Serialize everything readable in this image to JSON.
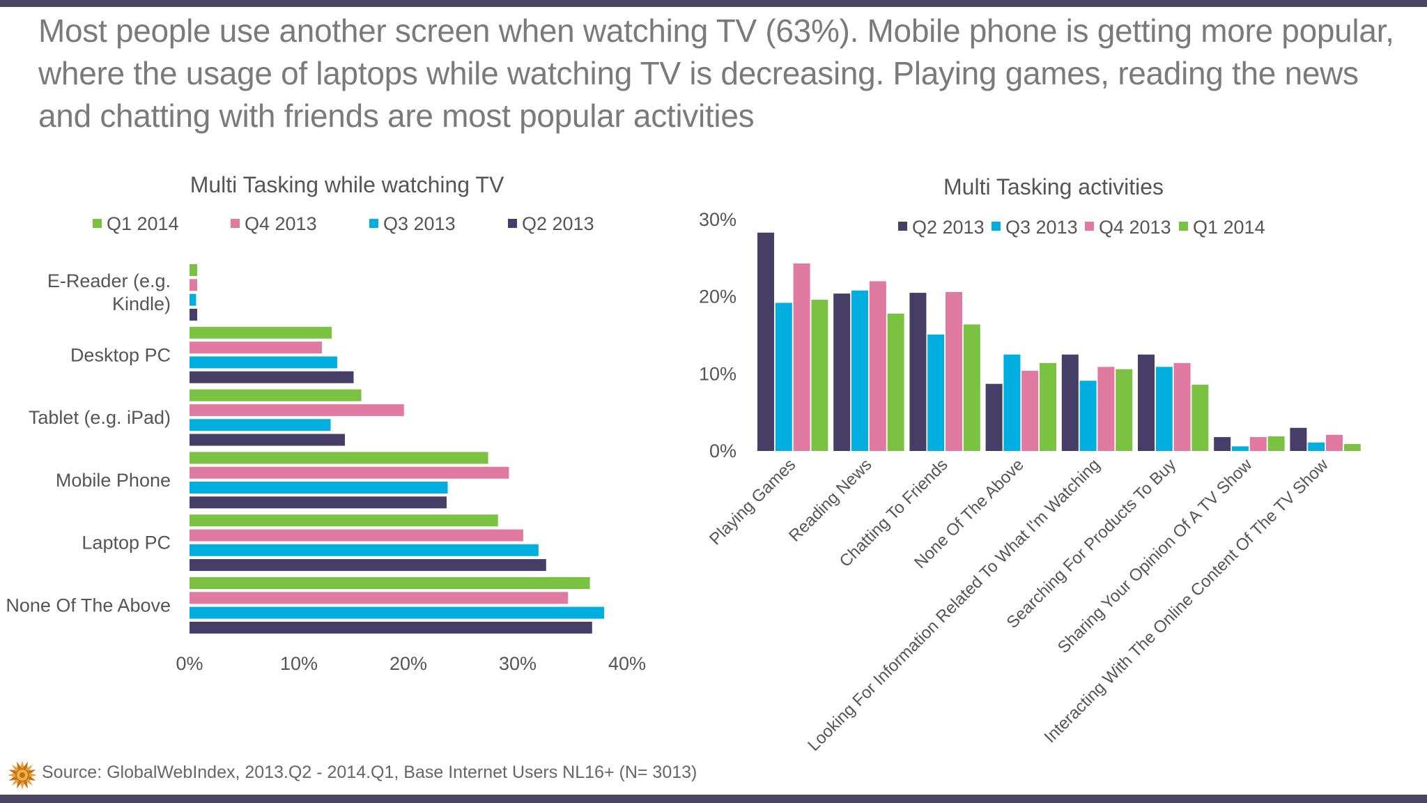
{
  "headline": "Most people use another screen when watching TV (63%). Mobile phone is getting more popular, where the usage of laptops while watching TV is decreasing. Playing games, reading the news and chatting with friends are most popular activities",
  "source": "Source: GlobalWebIndex, 2013.Q2 - 2014.Q1, Base Internet Users NL16+ (N= 3013)",
  "logo_icon": "sun-logo-icon",
  "colors": {
    "Q1 2014": "#7cc242",
    "Q4 2013": "#e07aa0",
    "Q3 2013": "#00aee0",
    "Q2 2013": "#463e66",
    "bars_frame": "#4a4560"
  },
  "chart_data": [
    {
      "type": "bar",
      "orientation": "horizontal",
      "title": "Multi Tasking while watching TV",
      "legend_order": [
        "Q1 2014",
        "Q4 2013",
        "Q3 2013",
        "Q2 2013"
      ],
      "legend_position": "top",
      "categories": [
        "E-Reader (e.g. Kindle)",
        "Desktop PC",
        "Tablet (e.g. iPad)",
        "Mobile Phone",
        "Laptop PC",
        "None Of The Above"
      ],
      "category_lines": [
        [
          "E-Reader (e.g.",
          "Kindle)"
        ],
        [
          "Desktop PC"
        ],
        [
          "Tablet (e.g. iPad)"
        ],
        [
          "Mobile Phone"
        ],
        [
          "Laptop PC"
        ],
        [
          "None Of The Above"
        ]
      ],
      "series": [
        {
          "name": "Q1 2014",
          "values": [
            0.7,
            13.0,
            15.7,
            27.3,
            28.2,
            36.6
          ]
        },
        {
          "name": "Q4 2013",
          "values": [
            0.7,
            12.1,
            19.6,
            29.2,
            30.5,
            34.6
          ]
        },
        {
          "name": "Q3 2013",
          "values": [
            0.6,
            13.5,
            12.9,
            23.6,
            31.9,
            37.9
          ]
        },
        {
          "name": "Q2 2013",
          "values": [
            0.7,
            15.0,
            14.2,
            23.5,
            32.6,
            36.8
          ]
        }
      ],
      "xlim": [
        0,
        40
      ],
      "xticks": [
        "0%",
        "10%",
        "20%",
        "30%",
        "40%"
      ],
      "grid": false
    },
    {
      "type": "bar",
      "orientation": "vertical",
      "title": "Multi Tasking activities",
      "legend_order": [
        "Q2 2013",
        "Q3 2013",
        "Q4 2013",
        "Q1 2014"
      ],
      "legend_position": "top",
      "categories": [
        "Playing Games",
        "Reading News",
        "Chatting To Friends",
        "None Of The Above",
        "Looking For Information Related To What I'm Watching",
        "Searching For Products To Buy",
        "Sharing Your Opinion Of A TV Show",
        "Interacting With The Online Content Of The TV Show"
      ],
      "series": [
        {
          "name": "Q2 2013",
          "values": [
            28.3,
            20.4,
            20.5,
            8.7,
            12.5,
            12.5,
            1.8,
            3.0
          ]
        },
        {
          "name": "Q3 2013",
          "values": [
            19.2,
            20.8,
            15.1,
            12.5,
            9.1,
            10.9,
            0.6,
            1.1
          ]
        },
        {
          "name": "Q4 2013",
          "values": [
            24.3,
            22.0,
            20.6,
            10.4,
            10.9,
            11.4,
            1.8,
            2.1
          ]
        },
        {
          "name": "Q1 2014",
          "values": [
            19.6,
            17.8,
            16.4,
            11.4,
            10.6,
            8.6,
            1.9,
            0.9
          ]
        }
      ],
      "ylim": [
        0,
        30
      ],
      "yticks": [
        "0%",
        "10%",
        "20%",
        "30%"
      ],
      "grid": false
    }
  ]
}
